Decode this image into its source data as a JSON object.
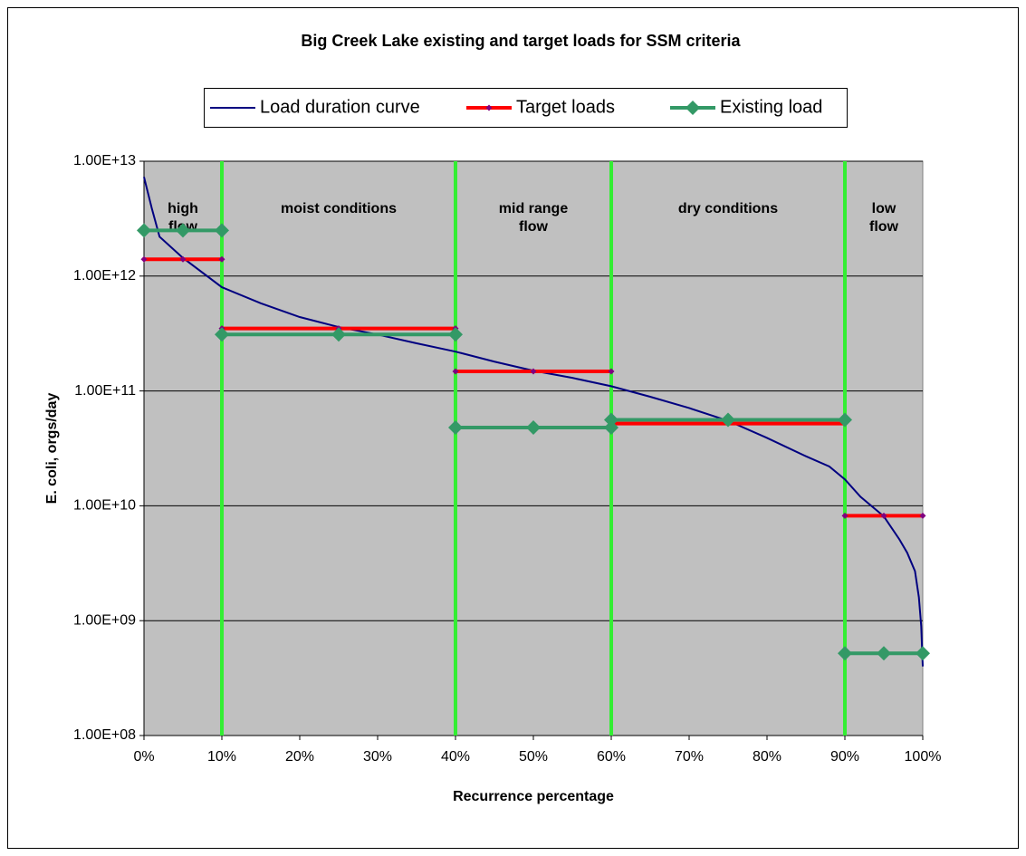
{
  "chart_data": {
    "type": "line",
    "title": "Big Creek Lake existing and target loads for SSM criteria",
    "x_label": "Recurrence percentage",
    "y_label": "E. coli, orgs/day",
    "xlim": [
      0,
      100
    ],
    "xticks": [
      {
        "value": 0,
        "label": "0%"
      },
      {
        "value": 10,
        "label": "10%"
      },
      {
        "value": 20,
        "label": "20%"
      },
      {
        "value": 30,
        "label": "30%"
      },
      {
        "value": 40,
        "label": "40%"
      },
      {
        "value": 50,
        "label": "50%"
      },
      {
        "value": 60,
        "label": "60%"
      },
      {
        "value": 70,
        "label": "70%"
      },
      {
        "value": 80,
        "label": "80%"
      },
      {
        "value": 90,
        "label": "90%"
      },
      {
        "value": 100,
        "label": "100%"
      }
    ],
    "ylim": [
      100000000,
      10000000000000
    ],
    "yticks": [
      {
        "value": 100000000,
        "label": "1.00E+08"
      },
      {
        "value": 1000000000,
        "label": "1.00E+09"
      },
      {
        "value": 10000000000,
        "label": "1.00E+10"
      },
      {
        "value": 100000000000,
        "label": "1.00E+11"
      },
      {
        "value": 1000000000000,
        "label": "1.00E+12"
      },
      {
        "value": 10000000000000,
        "label": "1.00E+13"
      }
    ],
    "y_log": true,
    "grid": true,
    "plot_background": "#c0c0c0",
    "legend": "top",
    "dividers": [
      10,
      40,
      60,
      90
    ],
    "divider_color": "#33ee33",
    "regions": [
      [
        "high",
        "flow"
      ],
      [
        "moist conditions"
      ],
      [
        "mid range",
        "flow"
      ],
      [
        "dry conditions"
      ],
      [
        "low",
        "flow"
      ]
    ],
    "series": [
      {
        "name": "Load duration curve",
        "color": "#000080",
        "marker": "none",
        "x": [
          0,
          1,
          2,
          5,
          10,
          15,
          20,
          25,
          30,
          35,
          40,
          45,
          50,
          55,
          60,
          65,
          70,
          75,
          80,
          85,
          88,
          90,
          92,
          95,
          97,
          98,
          99,
          99.5,
          99.8,
          100
        ],
        "values": [
          7300000000000,
          3900000000000,
          2200000000000,
          1440000000000,
          800000000000,
          580000000000,
          440000000000,
          360000000000,
          310000000000,
          260000000000,
          220000000000,
          180000000000,
          150000000000,
          130000000000,
          110000000000,
          89000000000,
          71000000000,
          55000000000,
          39000000000,
          27000000000,
          22000000000,
          17000000000,
          12000000000,
          8100000000,
          5100000000,
          3900000000,
          2700000000,
          1600000000,
          900000000,
          400000000
        ]
      },
      {
        "name": "Target loads",
        "color": "#ff0000",
        "marker": "small-diamond",
        "marker_color": "#800080",
        "x": [
          0,
          5,
          10,
          10,
          10,
          25,
          40,
          40,
          40,
          50,
          60,
          60,
          60,
          75,
          90,
          90,
          90,
          95,
          100
        ],
        "values": [
          1400000000000,
          1400000000000,
          1400000000000,
          null,
          350000000000,
          350000000000,
          350000000000,
          null,
          148000000000,
          148000000000,
          148000000000,
          null,
          52000000000,
          52000000000,
          52000000000,
          null,
          8200000000,
          8200000000,
          8200000000
        ]
      },
      {
        "name": "Existing load",
        "color": "#339966",
        "marker": "diamond",
        "marker_color": "#339966",
        "x": [
          0,
          5,
          10,
          10,
          10,
          25,
          40,
          40,
          40,
          50,
          60,
          60,
          60,
          75,
          90,
          90,
          90,
          95,
          100
        ],
        "values": [
          2500000000000,
          2500000000000,
          2500000000000,
          null,
          310000000000,
          310000000000,
          310000000000,
          null,
          48000000000,
          48000000000,
          48000000000,
          null,
          56000000000,
          56000000000,
          56000000000,
          null,
          520000000,
          520000000,
          520000000
        ]
      }
    ]
  }
}
